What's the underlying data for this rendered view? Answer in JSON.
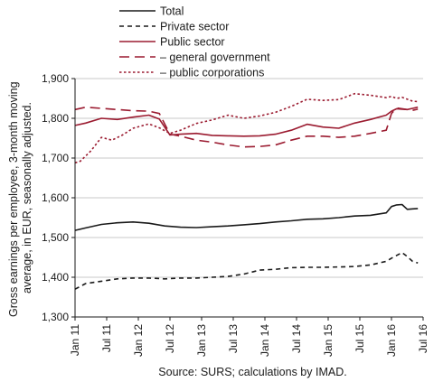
{
  "chart_data": {
    "type": "line",
    "ylabel_lines": [
      "Gross earnings per employee, 3-month moving",
      "average, in EUR, seasonally adjusted."
    ],
    "source": "Source: SURS; calculations by IMAD.",
    "ylim": [
      1300,
      1900
    ],
    "yticks": [
      1300,
      1400,
      1500,
      1600,
      1700,
      1800,
      1900
    ],
    "ytick_labels": [
      "1,300",
      "1,400",
      "1,500",
      "1,600",
      "1,700",
      "1,800",
      "1,900"
    ],
    "xlim": [
      "2011-01",
      "2016-07"
    ],
    "xtick_labels": [
      "Jan 11",
      "Jul 11",
      "Jan 12",
      "Jul 12",
      "Jan 13",
      "Jul 13",
      "Jan 14",
      "Jul 14",
      "Jan 15",
      "Jul 15",
      "Jan 16",
      "Jul 16"
    ],
    "xtick_dates": [
      "2011-01",
      "2011-07",
      "2012-01",
      "2012-07",
      "2013-01",
      "2013-07",
      "2014-01",
      "2014-07",
      "2015-01",
      "2015-07",
      "2016-01",
      "2016-07"
    ],
    "grid": "horizontal",
    "legend_position": "top",
    "series": [
      {
        "name": "Total",
        "color": "#1a1a1a",
        "style": "solid",
        "x": [
          "2011-01",
          "2011-03",
          "2011-06",
          "2011-09",
          "2011-12",
          "2012-03",
          "2012-06",
          "2012-09",
          "2012-12",
          "2013-03",
          "2013-06",
          "2013-09",
          "2013-12",
          "2014-03",
          "2014-06",
          "2014-09",
          "2014-12",
          "2015-03",
          "2015-06",
          "2015-09",
          "2015-12",
          "2016-01",
          "2016-02",
          "2016-03",
          "2016-04",
          "2016-05",
          "2016-06"
        ],
        "values": [
          1518,
          1524,
          1533,
          1537,
          1539,
          1536,
          1529,
          1526,
          1525,
          1527,
          1529,
          1532,
          1535,
          1539,
          1542,
          1546,
          1547,
          1550,
          1554,
          1556,
          1562,
          1578,
          1582,
          1583,
          1571,
          1572,
          1573
        ]
      },
      {
        "name": "Private sector",
        "color": "#1a1a1a",
        "style": "short-dash",
        "x": [
          "2011-01",
          "2011-03",
          "2011-06",
          "2011-09",
          "2011-12",
          "2012-03",
          "2012-06",
          "2012-09",
          "2012-12",
          "2013-03",
          "2013-06",
          "2013-09",
          "2013-12",
          "2014-03",
          "2014-06",
          "2014-09",
          "2014-12",
          "2015-03",
          "2015-06",
          "2015-09",
          "2015-12",
          "2016-01",
          "2016-02",
          "2016-03",
          "2016-04",
          "2016-05",
          "2016-06"
        ],
        "values": [
          1370,
          1384,
          1390,
          1396,
          1398,
          1398,
          1396,
          1398,
          1398,
          1400,
          1402,
          1408,
          1418,
          1420,
          1424,
          1425,
          1425,
          1426,
          1427,
          1431,
          1440,
          1448,
          1455,
          1462,
          1452,
          1440,
          1436
        ]
      },
      {
        "name": "Public sector",
        "color": "#9b1b30",
        "style": "solid",
        "x": [
          "2011-01",
          "2011-03",
          "2011-06",
          "2011-09",
          "2011-12",
          "2012-03",
          "2012-05",
          "2012-07",
          "2012-09",
          "2012-12",
          "2013-03",
          "2013-06",
          "2013-09",
          "2013-12",
          "2014-03",
          "2014-06",
          "2014-09",
          "2014-12",
          "2015-03",
          "2015-06",
          "2015-09",
          "2015-12",
          "2016-01",
          "2016-02",
          "2016-03",
          "2016-04",
          "2016-05",
          "2016-06"
        ],
        "values": [
          1782,
          1788,
          1800,
          1797,
          1803,
          1808,
          1798,
          1758,
          1760,
          1762,
          1757,
          1756,
          1755,
          1756,
          1760,
          1770,
          1785,
          1778,
          1775,
          1788,
          1797,
          1808,
          1818,
          1824,
          1823,
          1822,
          1825,
          1828
        ]
      },
      {
        "name": "– general government",
        "color": "#9b1b30",
        "style": "long-dash",
        "x": [
          "2011-01",
          "2011-03",
          "2011-06",
          "2011-09",
          "2011-12",
          "2012-03",
          "2012-05",
          "2012-07",
          "2012-09",
          "2012-12",
          "2013-03",
          "2013-06",
          "2013-09",
          "2013-12",
          "2014-03",
          "2014-06",
          "2014-09",
          "2014-12",
          "2015-03",
          "2015-06",
          "2015-09",
          "2015-12",
          "2016-01",
          "2016-02",
          "2016-03",
          "2016-04",
          "2016-05",
          "2016-06"
        ],
        "values": [
          1822,
          1828,
          1825,
          1822,
          1819,
          1818,
          1812,
          1760,
          1755,
          1745,
          1740,
          1733,
          1728,
          1729,
          1733,
          1745,
          1755,
          1755,
          1752,
          1755,
          1762,
          1770,
          1812,
          1826,
          1824,
          1822,
          1820,
          1823
        ]
      },
      {
        "name": "– public corporations",
        "color": "#9b1b30",
        "style": "dotted",
        "x": [
          "2011-01",
          "2011-02",
          "2011-04",
          "2011-06",
          "2011-08",
          "2011-10",
          "2011-12",
          "2012-03",
          "2012-05",
          "2012-07",
          "2012-09",
          "2012-12",
          "2013-03",
          "2013-06",
          "2013-09",
          "2013-12",
          "2014-03",
          "2014-06",
          "2014-09",
          "2014-12",
          "2015-03",
          "2015-06",
          "2015-09",
          "2015-12",
          "2016-01",
          "2016-02",
          "2016-03",
          "2016-04",
          "2016-05",
          "2016-06"
        ],
        "values": [
          1688,
          1692,
          1718,
          1752,
          1745,
          1758,
          1775,
          1786,
          1776,
          1762,
          1770,
          1787,
          1796,
          1808,
          1800,
          1806,
          1815,
          1830,
          1848,
          1845,
          1847,
          1862,
          1858,
          1852,
          1855,
          1850,
          1853,
          1848,
          1843,
          1842
        ]
      }
    ]
  }
}
